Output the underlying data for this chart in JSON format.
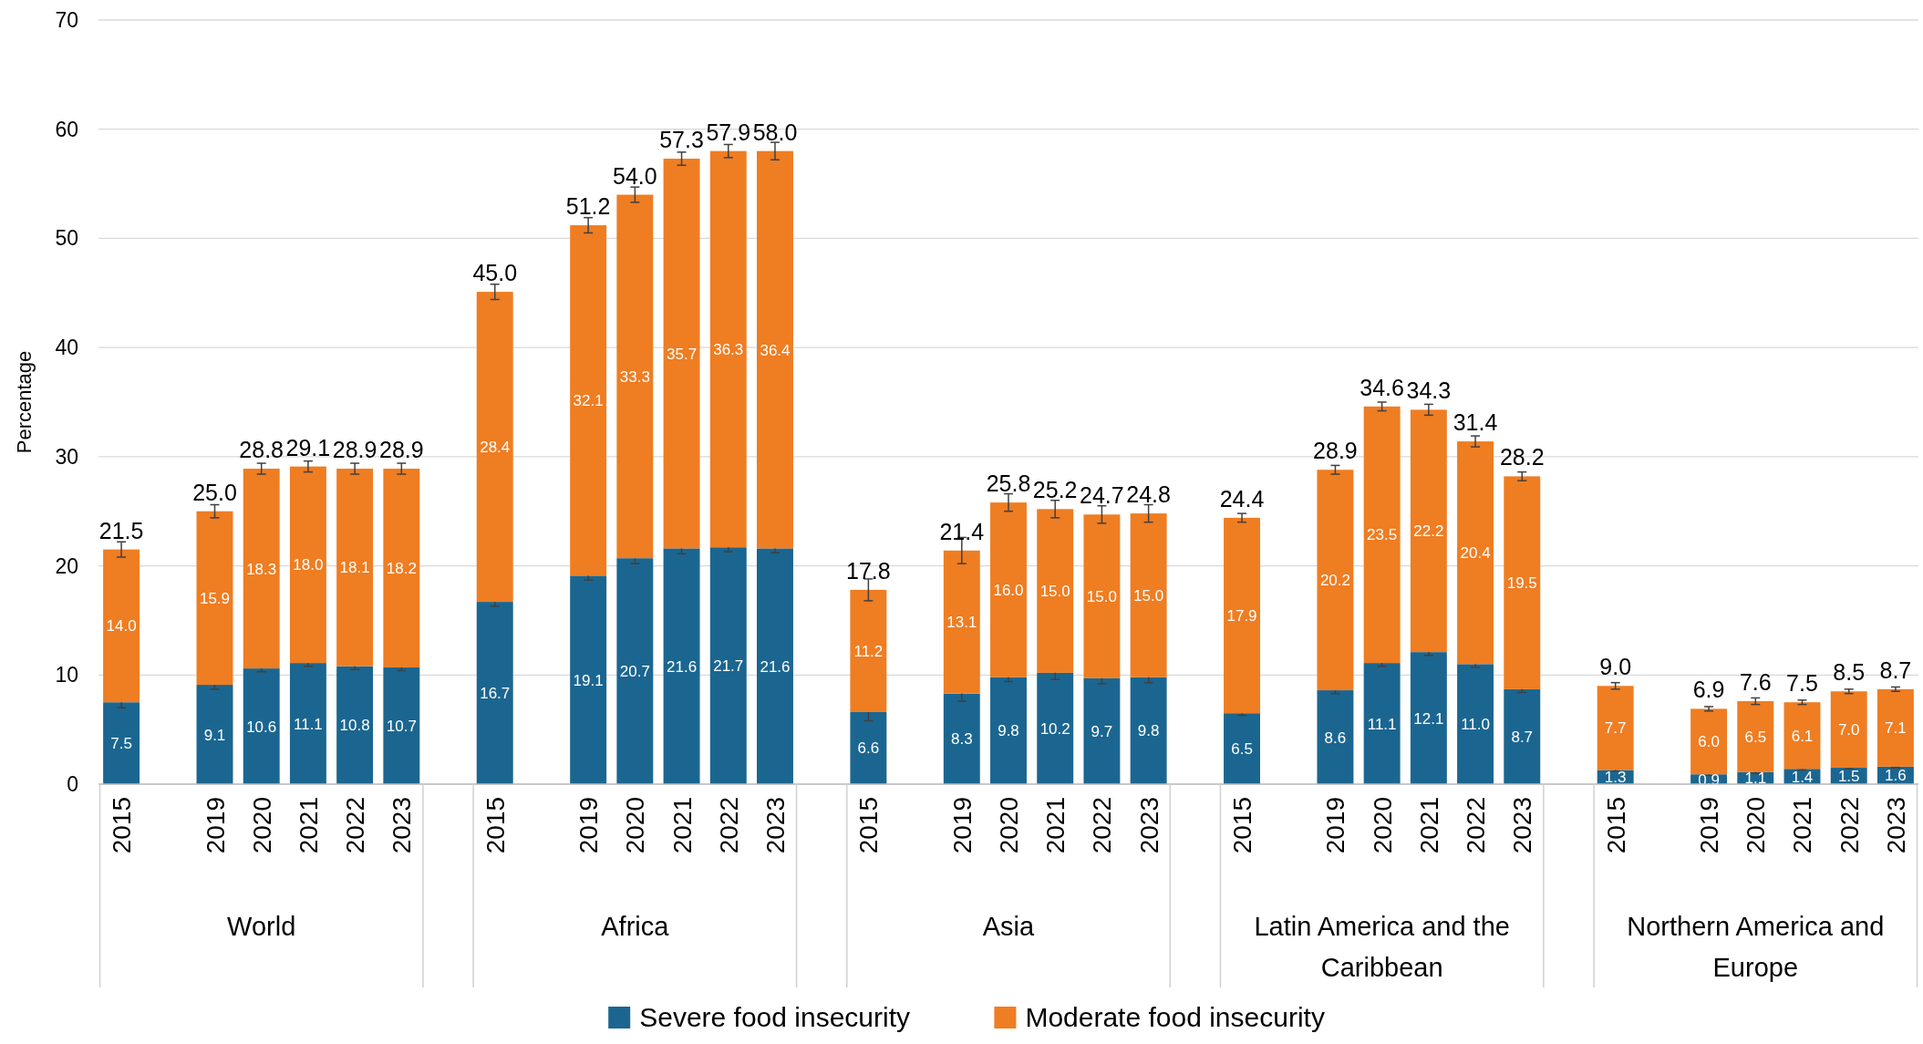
{
  "chart_data": {
    "type": "bar",
    "stacked": true,
    "ylabel": "Percentage",
    "ylim": [
      0,
      70
    ],
    "yticks": [
      0,
      10,
      20,
      30,
      40,
      50,
      60,
      70
    ],
    "grid": "y",
    "legend": "bottom",
    "categories": [
      "2015",
      null,
      "2019",
      "2020",
      "2021",
      "2022",
      "2023",
      null,
      "2015",
      null,
      "2019",
      "2020",
      "2021",
      "2022",
      "2023",
      null,
      "2015",
      null,
      "2019",
      "2020",
      "2021",
      "2022",
      "2023",
      null,
      "2015",
      null,
      "2019",
      "2020",
      "2021",
      "2022",
      "2023",
      null,
      "2015",
      null,
      "2019",
      "2020",
      "2021",
      "2022",
      "2023"
    ],
    "annotations": [
      "World",
      "Africa",
      "Asia",
      "Latin America and the Caribbean",
      "Northern America and Europe"
    ],
    "series": [
      {
        "name": "Severe food insecurity",
        "color": "#1b6690",
        "values": [
          7.5,
          null,
          9.1,
          10.6,
          11.1,
          10.8,
          10.7,
          null,
          16.7,
          null,
          19.1,
          20.7,
          21.6,
          21.7,
          21.6,
          null,
          6.6,
          null,
          8.3,
          9.8,
          10.2,
          9.7,
          9.8,
          null,
          6.5,
          null,
          8.6,
          11.1,
          12.1,
          11.0,
          8.7,
          null,
          1.3,
          null,
          0.9,
          1.1,
          1.4,
          1.5,
          1.6
        ],
        "value_labels": [
          "7.5",
          null,
          "9.1",
          "10.6",
          "11.1",
          "10.8",
          "10.7",
          null,
          "16.7",
          null,
          "19.1",
          "20.7",
          "21.6",
          "21.7",
          "21.6",
          null,
          "6.6",
          null,
          "8.3",
          "9.8",
          "10.2",
          "9.7",
          "9.8",
          null,
          "6.5",
          null,
          "8.6",
          "11.1",
          "12.1",
          "11.0",
          "8.7",
          null,
          "1.3",
          null,
          "0.9",
          "1.1",
          "1.4",
          "1.5",
          "1.6"
        ],
        "errors": [
          0.5,
          null,
          0.4,
          0.3,
          0.3,
          0.3,
          0.3,
          null,
          0.4,
          null,
          0.4,
          0.5,
          0.5,
          0.4,
          0.4,
          null,
          0.8,
          null,
          0.7,
          0.4,
          0.6,
          0.5,
          0.5,
          null,
          0.2,
          null,
          0.3,
          0.3,
          0.3,
          0.3,
          0.3,
          null,
          0.1,
          null,
          0.1,
          0.1,
          0.1,
          0.1,
          0.1
        ]
      },
      {
        "name": "Moderate food insecurity",
        "color": "#ef7d22",
        "values": [
          14.0,
          null,
          15.9,
          18.3,
          18.0,
          18.1,
          18.2,
          null,
          28.4,
          null,
          32.1,
          33.3,
          35.7,
          36.3,
          36.4,
          null,
          11.2,
          null,
          13.1,
          16.0,
          15.0,
          15.0,
          15.0,
          null,
          17.9,
          null,
          20.2,
          23.5,
          22.2,
          20.4,
          19.5,
          null,
          7.7,
          null,
          6.0,
          6.5,
          6.1,
          7.0,
          7.1
        ],
        "value_labels": [
          "14.0",
          null,
          "15.9",
          "18.3",
          "18.0",
          "18.1",
          "18.2",
          null,
          "28.4",
          null,
          "32.1",
          "33.3",
          "35.7",
          "36.3",
          "36.4",
          null,
          "11.2",
          null,
          "13.1",
          "16.0",
          "15.0",
          "15.0",
          "15.0",
          null,
          "17.9",
          null,
          "20.2",
          "23.5",
          "22.2",
          "20.4",
          "19.5",
          null,
          "7.7",
          null,
          "6.0",
          "6.5",
          "6.1",
          "7.0",
          "7.1"
        ],
        "errors": [
          0.7,
          null,
          0.6,
          0.5,
          0.5,
          0.5,
          0.5,
          null,
          0.7,
          null,
          0.7,
          0.7,
          0.6,
          0.6,
          0.8,
          null,
          1.0,
          null,
          1.2,
          0.8,
          0.8,
          0.8,
          0.8,
          null,
          0.4,
          null,
          0.4,
          0.4,
          0.5,
          0.5,
          0.4,
          null,
          0.3,
          null,
          0.2,
          0.3,
          0.2,
          0.2,
          0.2
        ]
      }
    ],
    "totals": [
      "21.5",
      null,
      "25.0",
      "28.8",
      "29.1",
      "28.9",
      "28.9",
      null,
      "45.0",
      null,
      "51.2",
      "54.0",
      "57.3",
      "57.9",
      "58.0",
      null,
      "17.8",
      null,
      "21.4",
      "25.8",
      "25.2",
      "24.7",
      "24.8",
      null,
      "24.4",
      null,
      "28.9",
      "34.6",
      "34.3",
      "31.4",
      "28.2",
      null,
      "9.0",
      null,
      "6.9",
      "7.6",
      "7.5",
      "8.5",
      "8.7"
    ]
  }
}
